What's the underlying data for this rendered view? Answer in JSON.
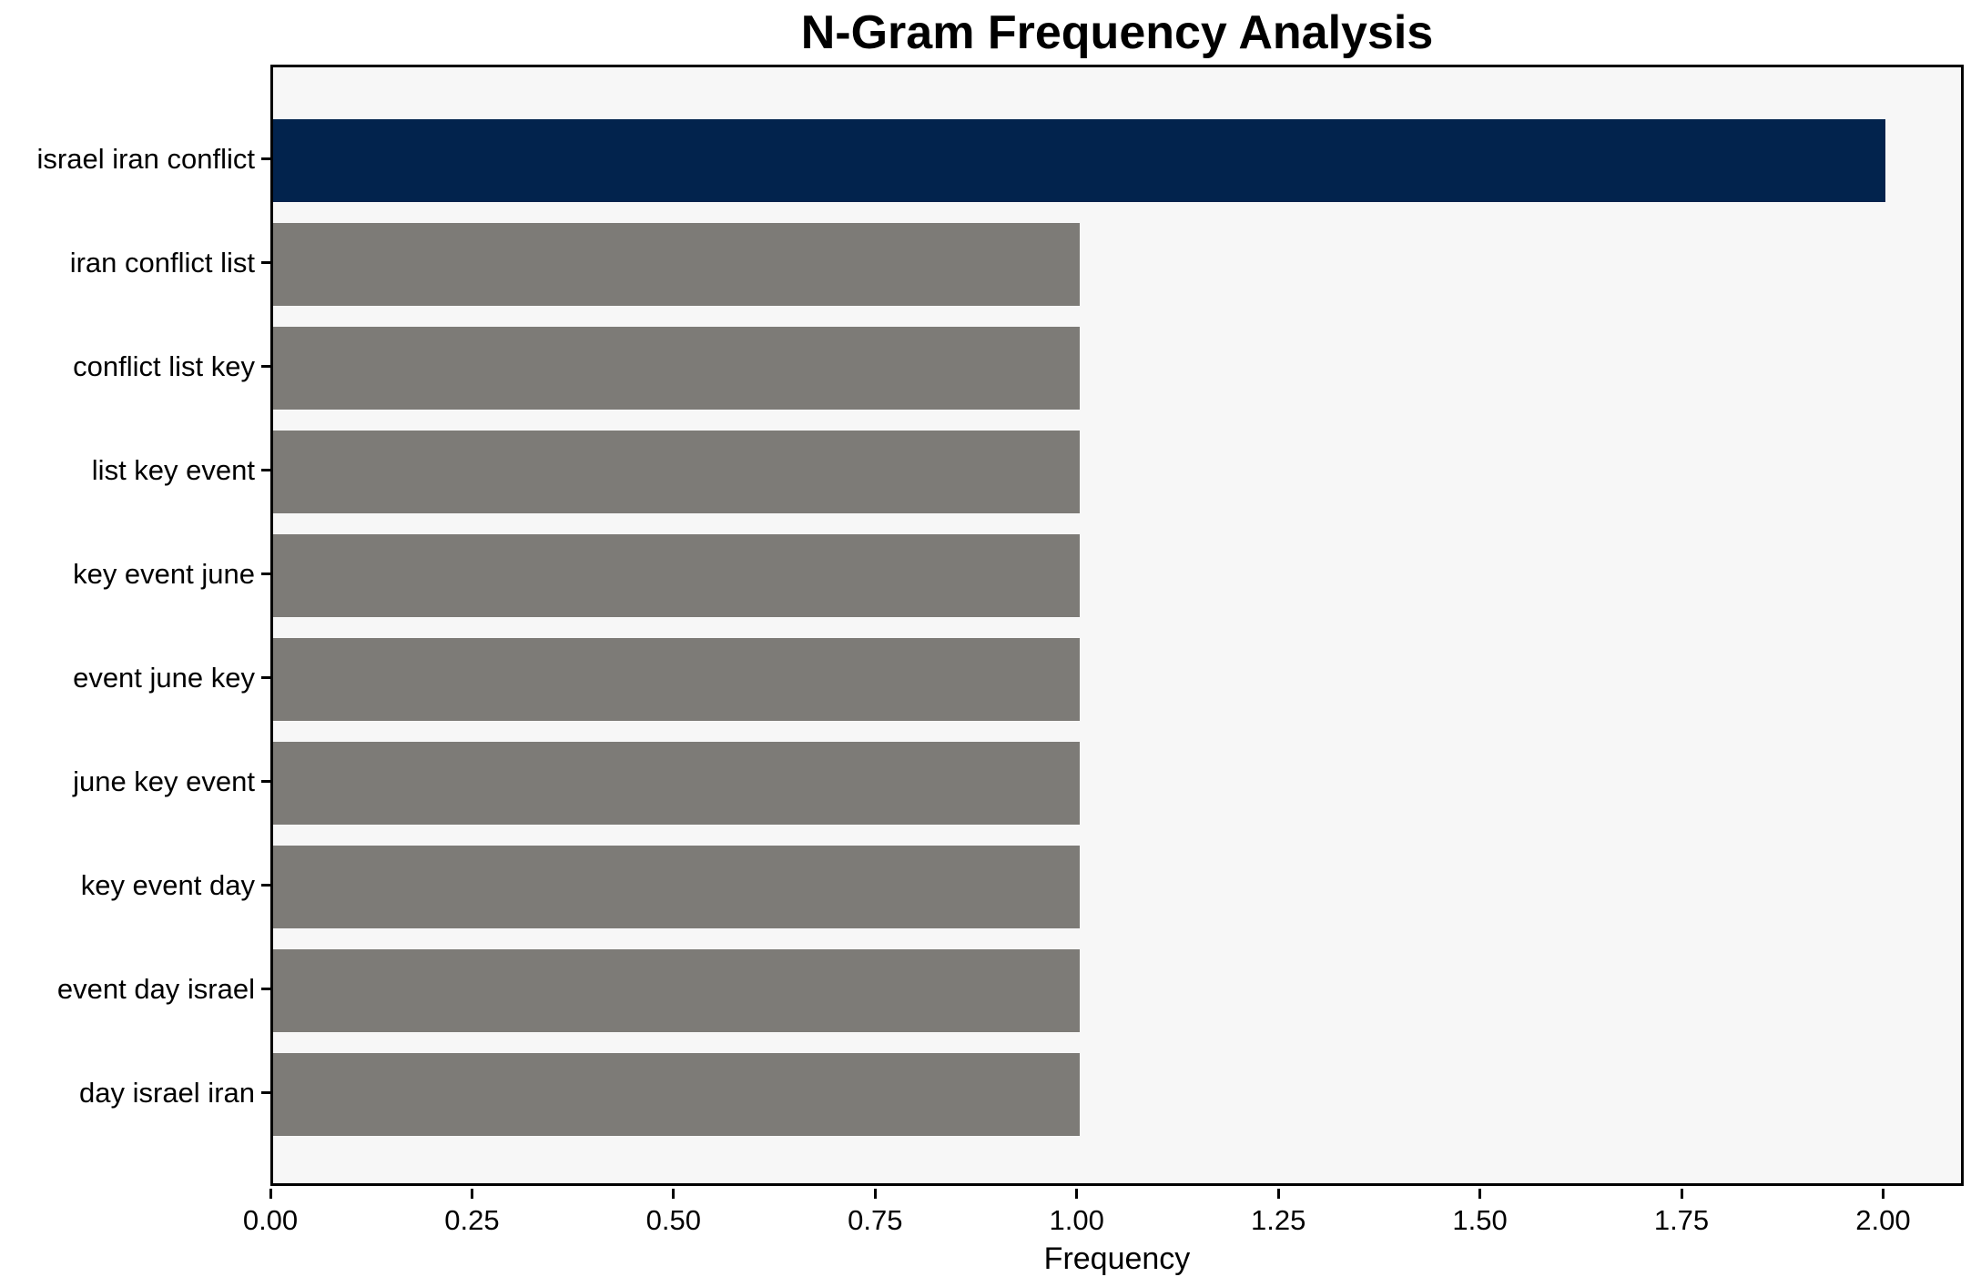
{
  "chart_data": {
    "type": "bar",
    "orientation": "horizontal",
    "title": "N-Gram Frequency Analysis",
    "xlabel": "Frequency",
    "ylabel": "",
    "categories": [
      "israel iran conflict",
      "iran conflict list",
      "conflict list key",
      "list key event",
      "key event june",
      "event june key",
      "june key event",
      "key event day",
      "event day israel",
      "day israel iran"
    ],
    "values": [
      2,
      1,
      1,
      1,
      1,
      1,
      1,
      1,
      1,
      1
    ],
    "bar_colors": [
      "#02234d",
      "#7d7b77",
      "#7d7b77",
      "#7d7b77",
      "#7d7b77",
      "#7d7b77",
      "#7d7b77",
      "#7d7b77",
      "#7d7b77",
      "#7d7b77"
    ],
    "highlight_color": "#02234d",
    "default_bar_color": "#7d7b77",
    "plot_background": "#f7f7f7",
    "spine_color": "#000000",
    "xlim": [
      0,
      2.1
    ],
    "xticks": [
      0.0,
      0.25,
      0.5,
      0.75,
      1.0,
      1.25,
      1.5,
      1.75,
      2.0
    ],
    "xtick_decimals": 2,
    "grid": false,
    "legend": null
  }
}
